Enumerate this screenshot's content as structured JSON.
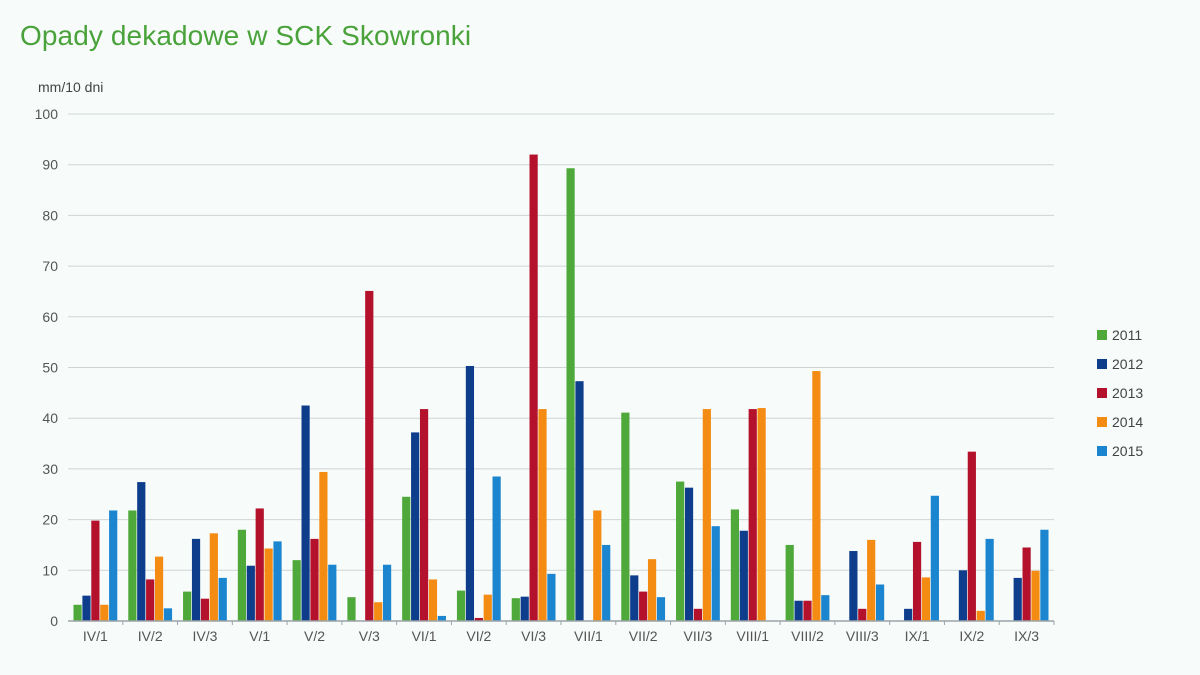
{
  "page": {
    "title": "Opady dekadowe w SCK Skowronki"
  },
  "colors": {
    "background": "#f7fbfa",
    "title": "#4aa23a",
    "grid": "#cfd4d6",
    "axis": "#9aa3a8",
    "series": [
      "#4ea93a",
      "#0e3d8b",
      "#b3112c",
      "#f48c13",
      "#1b86cf"
    ]
  },
  "chart_data": {
    "type": "bar",
    "title": "Opady dekadowe w SCK Skowronki",
    "ylabel": "mm/10 dni",
    "xlabel": "",
    "ylim": [
      0,
      100
    ],
    "yticks": [
      0,
      10,
      20,
      30,
      40,
      50,
      60,
      70,
      80,
      90,
      100
    ],
    "grid": true,
    "legend_position": "right",
    "categories": [
      "IV/1",
      "IV/2",
      "IV/3",
      "V/1",
      "V/2",
      "V/3",
      "VI/1",
      "VI/2",
      "VI/3",
      "VII/1",
      "VII/2",
      "VII/3",
      "VIII/1",
      "VIII/2",
      "VIII/3",
      "IX/1",
      "IX/2",
      "IX/3"
    ],
    "series": [
      {
        "name": "2011",
        "values": [
          3.2,
          21.8,
          5.8,
          18.0,
          12.0,
          4.7,
          24.5,
          6.0,
          4.5,
          89.3,
          41.1,
          27.5,
          22.0,
          15.0,
          0,
          0,
          0,
          0
        ]
      },
      {
        "name": "2012",
        "values": [
          5.0,
          27.4,
          16.2,
          10.9,
          42.5,
          0,
          37.2,
          50.3,
          4.8,
          47.3,
          9.0,
          26.3,
          17.8,
          4.0,
          13.8,
          2.4,
          10.0,
          8.5
        ]
      },
      {
        "name": "2013",
        "values": [
          19.8,
          8.2,
          4.4,
          22.2,
          16.2,
          65.1,
          41.8,
          0.6,
          92.0,
          0,
          5.8,
          2.4,
          41.8,
          4.0,
          2.4,
          15.6,
          33.4,
          14.5
        ]
      },
      {
        "name": "2014",
        "values": [
          3.2,
          12.7,
          17.3,
          14.3,
          29.4,
          3.7,
          8.2,
          5.2,
          41.8,
          21.8,
          12.2,
          41.8,
          42.0,
          49.3,
          16.0,
          8.6,
          2.0,
          9.9
        ]
      },
      {
        "name": "2015",
        "values": [
          21.8,
          2.5,
          8.5,
          15.7,
          11.1,
          11.1,
          1.0,
          28.5,
          9.3,
          15.0,
          4.7,
          18.7,
          0,
          5.1,
          7.2,
          24.7,
          16.2,
          18.0
        ]
      }
    ]
  }
}
